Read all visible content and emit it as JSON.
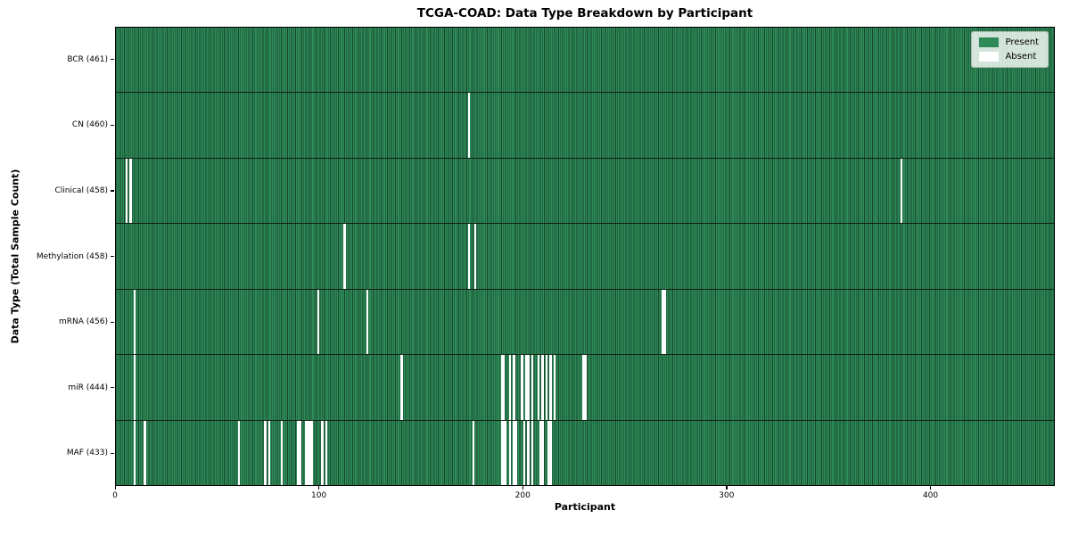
{
  "chart_data": {
    "type": "heatmap",
    "title": "TCGA-COAD: Data Type Breakdown by Participant",
    "xlabel": "Participant",
    "ylabel": "Data Type (Total Sample Count)",
    "x_ticks": [
      0,
      100,
      200,
      300,
      400
    ],
    "x_range": [
      0,
      461
    ],
    "n_participants": 461,
    "legend_position": "upper right",
    "legend_labels": {
      "present": "Present",
      "absent": "Absent"
    },
    "colors": {
      "present": "#2e8b57",
      "present_edge": "#17462c",
      "absent": "#ffffff",
      "axes": "#000000"
    },
    "rows": [
      {
        "data_type": "BCR",
        "label": "BCR (461)",
        "present_count": 461,
        "absent_participants": []
      },
      {
        "data_type": "CN",
        "label": "CN (460)",
        "present_count": 460,
        "absent_participants": [
          173
        ]
      },
      {
        "data_type": "Clinical",
        "label": "Clinical (458)",
        "present_count": 458,
        "absent_participants": [
          5,
          7,
          385
        ]
      },
      {
        "data_type": "Methylation",
        "label": "Methylation (458)",
        "present_count": 458,
        "absent_participants": [
          112,
          173,
          176
        ]
      },
      {
        "data_type": "mRNA",
        "label": "mRNA (456)",
        "present_count": 456,
        "absent_participants": [
          9,
          99,
          123,
          268,
          269
        ]
      },
      {
        "data_type": "miR",
        "label": "miR (444)",
        "present_count": 444,
        "absent_participants": [
          9,
          140,
          189,
          190,
          193,
          195,
          199,
          201,
          202,
          204,
          207,
          209,
          211,
          213,
          215,
          229,
          230
        ]
      },
      {
        "data_type": "MAF",
        "label": "MAF (433)",
        "present_count": 433,
        "absent_participants": [
          9,
          14,
          60,
          73,
          75,
          81,
          89,
          90,
          93,
          94,
          95,
          96,
          101,
          103,
          175,
          189,
          190,
          191,
          193,
          195,
          196,
          200,
          202,
          204,
          208,
          209,
          212,
          213
        ]
      }
    ]
  }
}
